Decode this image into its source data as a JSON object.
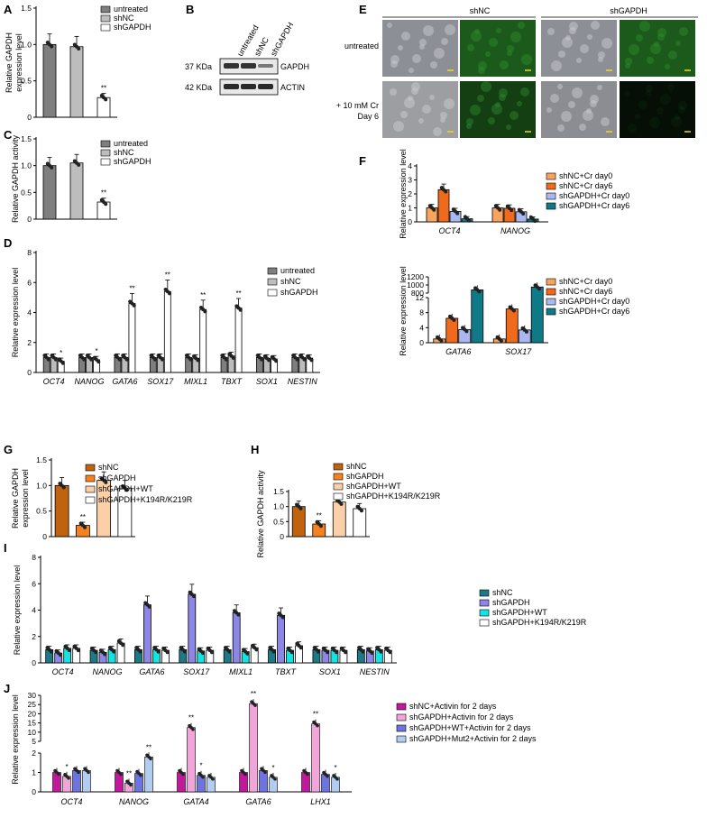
{
  "figure": {
    "panel_letters": [
      "A",
      "B",
      "C",
      "D",
      "E",
      "F",
      "G",
      "H",
      "I",
      "J"
    ]
  },
  "colors": {
    "untreated": "#7f7f7f",
    "shNC_grey": "#bdbdbd",
    "white": "#ffffff",
    "orange_light": "#f6a45f",
    "orange_dark": "#ef6a1c",
    "blue_light": "#a9b8f0",
    "teal": "#0e7a87",
    "brown": "#c0620e",
    "orange": "#f5821f",
    "peach": "#fbcfa8",
    "teal_I": "#1b7a86",
    "purple_I": "#8c86e6",
    "cyan_I": "#14e3e3",
    "magenta_J": "#c2189c",
    "pink_J": "#f0a6d8",
    "blue_J": "#6d74e0",
    "lightblue_J": "#b3cdf0"
  },
  "blot": {
    "lanes": [
      "untreated",
      "shNC",
      "shGAPDH"
    ],
    "rows": [
      {
        "kda": "37 KDa",
        "protein": "GAPDH"
      },
      {
        "kda": "42 KDa",
        "protein": "ACTIN"
      }
    ]
  },
  "micro": {
    "col_groups": [
      "shNC",
      "shGAPDH"
    ],
    "row_labels": [
      "untreated",
      "+ 10 mM Cr",
      "Day 6"
    ]
  },
  "chart_data": [
    {
      "panel": "A",
      "type": "bar",
      "ylabel": [
        "Relative GAPDH",
        "expression level"
      ],
      "categories": [
        "untreated",
        "shNC",
        "shGAPDH"
      ],
      "values": [
        1.0,
        0.97,
        0.27
      ],
      "ylim": [
        0,
        1.5
      ],
      "yticks": [
        "0",
        "0.5",
        "1.0",
        "1.5"
      ],
      "legend": [
        "untreated",
        "shNC",
        "shGAPDH"
      ],
      "stars": [
        "",
        "",
        "**"
      ]
    },
    {
      "panel": "C",
      "type": "bar",
      "ylabel": [
        "Relative GAPDH activity"
      ],
      "categories": [
        "untreated",
        "shNC",
        "shGAPDH"
      ],
      "values": [
        1.0,
        1.05,
        0.32
      ],
      "ylim": [
        0,
        1.5
      ],
      "yticks": [
        "0",
        "0.5",
        "1.0",
        "1.5"
      ],
      "legend": [
        "untreated",
        "shNC",
        "shGAPDH"
      ],
      "stars": [
        "",
        "",
        "**"
      ]
    },
    {
      "panel": "D",
      "type": "bar",
      "ylabel": [
        "Relative expression level"
      ],
      "categories": [
        "OCT4",
        "NANOG",
        "GATA6",
        "SOX17",
        "MIXL1",
        "TBXT",
        "SOX1",
        "NESTIN"
      ],
      "series": [
        {
          "name": "untreated",
          "values": [
            1.0,
            1.0,
            1.0,
            1.0,
            1.0,
            1.0,
            1.0,
            1.0
          ]
        },
        {
          "name": "shNC",
          "values": [
            1.0,
            1.0,
            1.0,
            1.0,
            0.95,
            1.1,
            0.95,
            1.0
          ]
        },
        {
          "name": "shGAPDH",
          "values": [
            0.75,
            0.85,
            4.6,
            5.4,
            4.2,
            4.3,
            0.9,
            0.95
          ]
        }
      ],
      "ylim": [
        0,
        8
      ],
      "yticks": [
        "0",
        "2",
        "4",
        "6",
        "8"
      ],
      "stars": [
        "*",
        "*",
        "**",
        "**",
        "**",
        "**",
        "",
        ""
      ]
    },
    {
      "panel": "F-top",
      "type": "bar",
      "ylabel": [
        "Relative expression level"
      ],
      "categories": [
        "OCT4",
        "NANOG"
      ],
      "series": [
        {
          "name": "shNC+Cr day0",
          "values": [
            1.0,
            1.0
          ]
        },
        {
          "name": "shNC+Cr day6",
          "values": [
            2.3,
            0.97
          ]
        },
        {
          "name": "shGAPDH+Cr day0",
          "values": [
            0.75,
            0.72
          ]
        },
        {
          "name": "shGAPDH+Cr day6",
          "values": [
            0.22,
            0.2
          ]
        }
      ],
      "ylim": [
        0,
        4
      ],
      "yticks": [
        "0",
        "1",
        "2",
        "3",
        "4"
      ],
      "brackets": [
        [
          "NS",
          "**",
          "**"
        ],
        [
          "NS",
          "**",
          "**"
        ]
      ]
    },
    {
      "panel": "F-bottom",
      "type": "bar",
      "ylabel": [
        "Relative expression level"
      ],
      "categories": [
        "GATA6",
        "SOX17"
      ],
      "series": [
        {
          "name": "shNC+Cr day0",
          "values": [
            1.0,
            1.0
          ]
        },
        {
          "name": "shNC+Cr day6",
          "values": [
            6.5,
            9.0
          ]
        },
        {
          "name": "shGAPDH+Cr day0",
          "values": [
            3.5,
            3.4
          ]
        },
        {
          "name": "shGAPDH+Cr day6",
          "values": [
            880,
            950
          ]
        }
      ],
      "yticks": [
        "0",
        "4",
        "8",
        "12",
        "800",
        "1000",
        "1200"
      ],
      "brackets": [
        [
          "**",
          "**",
          "**"
        ],
        [
          "**",
          "**",
          "**"
        ]
      ]
    },
    {
      "panel": "G",
      "type": "bar",
      "ylabel": [
        "Relative GAPDH",
        "expression level"
      ],
      "categories": [
        "shNC",
        "shGAPDH",
        "shGAPDH+WT",
        "shGAPDH+K194R/K219R"
      ],
      "values": [
        1.0,
        0.22,
        1.1,
        0.95
      ],
      "ylim": [
        0,
        1.5
      ],
      "yticks": [
        "0",
        "0.5",
        "1.0",
        "1.5"
      ],
      "legend": [
        "shNC",
        "shGAPDH",
        "shGAPDH+WT",
        "shGAPDH+K194R/K219R"
      ],
      "stars": [
        "",
        "**",
        "",
        ""
      ]
    },
    {
      "panel": "H",
      "type": "bar",
      "ylabel": [
        "Relative GAPDH activity"
      ],
      "categories": [
        "shNC",
        "shGAPDH",
        "shGAPDH+WT",
        "shGAPDH+K194R/K219R"
      ],
      "values": [
        1.0,
        0.42,
        1.15,
        0.93
      ],
      "ylim": [
        0,
        1.5
      ],
      "yticks": [
        "0",
        "0.5",
        "1.0",
        "1.5"
      ],
      "legend": [
        "shNC",
        "shGAPDH",
        "shGAPDH+WT",
        "shGAPDH+K194R/K219R"
      ],
      "stars": [
        "",
        "**",
        "",
        ""
      ]
    },
    {
      "panel": "I",
      "type": "bar",
      "ylabel": [
        "Relative expression level"
      ],
      "categories": [
        "OCT4",
        "NANOG",
        "GATA6",
        "SOX17",
        "MIXL1",
        "TBXT",
        "SOX1",
        "NESTIN"
      ],
      "series": [
        {
          "name": "shNC",
          "values": [
            1.0,
            0.95,
            1.0,
            1.0,
            1.0,
            1.0,
            1.0,
            1.0
          ]
        },
        {
          "name": "shGAPDH",
          "values": [
            0.75,
            0.8,
            4.4,
            5.2,
            3.8,
            3.6,
            0.95,
            0.9
          ]
        },
        {
          "name": "shGAPDH+WT",
          "values": [
            1.1,
            1.0,
            1.0,
            0.9,
            0.85,
            0.95,
            0.95,
            1.0
          ]
        },
        {
          "name": "shGAPDH+K194R/K219R",
          "values": [
            1.1,
            1.5,
            0.95,
            0.95,
            1.15,
            1.3,
            0.95,
            0.95
          ]
        }
      ],
      "ylim": [
        0,
        8
      ],
      "yticks": [
        "0",
        "2",
        "4",
        "6",
        "8"
      ],
      "stars": [
        "*",
        "*",
        "**",
        "**",
        "**",
        "*",
        "",
        ""
      ]
    },
    {
      "panel": "J",
      "type": "bar",
      "ylabel": [
        "Relative expression level"
      ],
      "categories": [
        "OCT4",
        "NANOG",
        "GATA4",
        "GATA6",
        "LHX1"
      ],
      "series": [
        {
          "name": "shNC+Activin for 2 days",
          "values": [
            1.0,
            1.0,
            1.0,
            1.0,
            1.0
          ]
        },
        {
          "name": "shGAPDH+Activin for 2 days",
          "values": [
            0.8,
            0.45,
            12.5,
            25.5,
            14.5
          ]
        },
        {
          "name": "shGAPDH+WT+Activin for 2 days",
          "values": [
            1.1,
            0.95,
            0.85,
            1.1,
            0.9
          ]
        },
        {
          "name": "shGAPDH+Mut2+Activin for 2 days",
          "values": [
            1.1,
            1.8,
            0.75,
            0.75,
            0.75
          ]
        }
      ],
      "yticks": [
        "0",
        "1",
        "2",
        "5",
        "10",
        "15",
        "20",
        "25",
        "30"
      ],
      "stars": [
        [
          "",
          "*",
          "",
          ""
        ],
        [
          "",
          "**",
          "",
          "**"
        ],
        [
          "",
          "**",
          "*",
          ""
        ],
        [
          "",
          "**",
          "",
          "*"
        ],
        [
          "",
          "**",
          "",
          "*"
        ]
      ]
    }
  ]
}
